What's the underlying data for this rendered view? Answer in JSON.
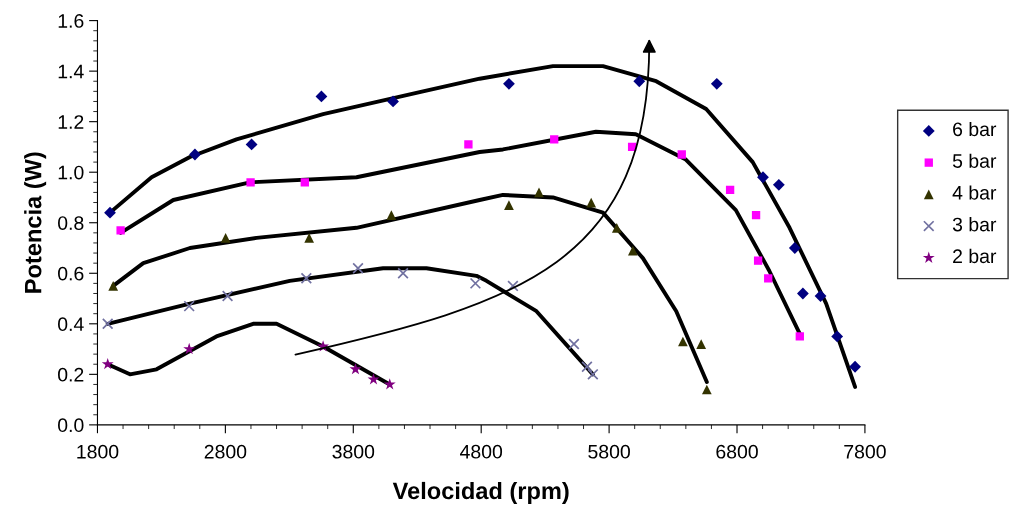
{
  "chart_data": {
    "type": "scatter",
    "xlabel": "Velocidad (rpm)",
    "ylabel": "Potencia (W)",
    "xlim": [
      1800,
      7800
    ],
    "ylim": [
      0,
      1.6
    ],
    "xticks": [
      1800,
      2800,
      3800,
      4800,
      5800,
      6800,
      7800
    ],
    "yticks": [
      {
        "value": 0,
        "label": "0.0"
      },
      {
        "value": 0.2,
        "label": "0.2"
      },
      {
        "value": 0.4,
        "label": "0.4"
      },
      {
        "value": 0.6,
        "label": "0.6"
      },
      {
        "value": 0.8,
        "label": "0.8"
      },
      {
        "value": 1.0,
        "label": "1.0"
      },
      {
        "value": 1.2,
        "label": "1.2"
      },
      {
        "value": 1.4,
        "label": "1.4"
      },
      {
        "value": 1.6,
        "label": "1.6"
      }
    ],
    "grid": false,
    "legend": "right",
    "series": [
      {
        "name": "6 bar",
        "marker": "diamond",
        "color": "#000080",
        "x": [
          1898,
          2562,
          3005,
          3551,
          4111,
          5017,
          6036,
          6642,
          7003,
          7127,
          7252,
          7315,
          7453,
          7583,
          7723
        ],
        "values": [
          0.84,
          1.07,
          1.11,
          1.3,
          1.28,
          1.35,
          1.36,
          1.35,
          0.98,
          0.95,
          0.7,
          0.52,
          0.51,
          0.35,
          0.23
        ]
      },
      {
        "name": "5 bar",
        "marker": "square",
        "color": "#ff00ff",
        "x": [
          1981,
          2997,
          3421,
          4700,
          5371,
          5980,
          6368,
          6746,
          6949,
          6965,
          7044,
          7291
        ],
        "values": [
          0.77,
          0.96,
          0.96,
          1.11,
          1.13,
          1.1,
          1.07,
          0.93,
          0.83,
          0.65,
          0.58,
          0.35
        ]
      },
      {
        "name": "4 bar",
        "marker": "triangle",
        "color": "#333300",
        "x": [
          1923,
          2802,
          3455,
          4098,
          5017,
          5252,
          5660,
          5860,
          5986,
          6377,
          6520,
          6564
        ],
        "values": [
          0.55,
          0.74,
          0.74,
          0.83,
          0.87,
          0.92,
          0.88,
          0.78,
          0.69,
          0.33,
          0.32,
          0.14
        ]
      },
      {
        "name": "3 bar",
        "marker": "cross",
        "color": "#7070a0",
        "x": [
          1880,
          2517,
          2817,
          3433,
          3837,
          4189,
          4755,
          5048,
          5525,
          5627,
          5673
        ],
        "values": [
          0.4,
          0.47,
          0.51,
          0.58,
          0.62,
          0.6,
          0.56,
          0.55,
          0.32,
          0.23,
          0.2
        ]
      },
      {
        "name": "2 bar",
        "marker": "star",
        "color": "#800080",
        "x": [
          1880,
          2517,
          3564,
          3817,
          3958,
          4085
        ],
        "values": [
          0.24,
          0.3,
          0.31,
          0.22,
          0.18,
          0.16
        ]
      },
      {
        "type": "line",
        "marker": "none",
        "color": "#000000",
        "x": [
          1898,
          2223,
          2523,
          2887,
          3564,
          4345,
          4788,
          5361,
          5752,
          6168,
          6559,
          6923,
          7211,
          7497,
          7723
        ],
        "values": [
          0.84,
          0.98,
          1.06,
          1.13,
          1.23,
          1.32,
          1.37,
          1.42,
          1.42,
          1.36,
          1.25,
          1.04,
          0.78,
          0.48,
          0.15
        ]
      },
      {
        "type": "line",
        "marker": "none",
        "color": "#000000",
        "x": [
          1981,
          2393,
          2991,
          3825,
          4788,
          4970,
          5697,
          6009,
          6400,
          6791,
          7052,
          7291
        ],
        "values": [
          0.76,
          0.89,
          0.96,
          0.98,
          1.08,
          1.09,
          1.16,
          1.15,
          1.05,
          0.85,
          0.61,
          0.36
        ]
      },
      {
        "type": "line",
        "marker": "none",
        "color": "#000000",
        "x": [
          1923,
          2158,
          2523,
          3044,
          3825,
          4788,
          4970,
          5361,
          5752,
          6064,
          6325,
          6564
        ],
        "values": [
          0.55,
          0.64,
          0.7,
          0.74,
          0.78,
          0.89,
          0.91,
          0.9,
          0.84,
          0.66,
          0.45,
          0.17
        ]
      },
      {
        "type": "line",
        "marker": "none",
        "color": "#000000",
        "x": [
          1880,
          2523,
          3303,
          4033,
          4372,
          4763,
          4841,
          5232,
          5673
        ],
        "values": [
          0.4,
          0.48,
          0.57,
          0.62,
          0.62,
          0.59,
          0.57,
          0.45,
          0.2
        ]
      },
      {
        "type": "line",
        "marker": "none",
        "color": "#000000",
        "x": [
          1880,
          2054,
          2262,
          2730,
          3017,
          3200,
          3564,
          4085
        ],
        "values": [
          0.24,
          0.2,
          0.22,
          0.35,
          0.4,
          0.4,
          0.31,
          0.16
        ]
      }
    ]
  }
}
